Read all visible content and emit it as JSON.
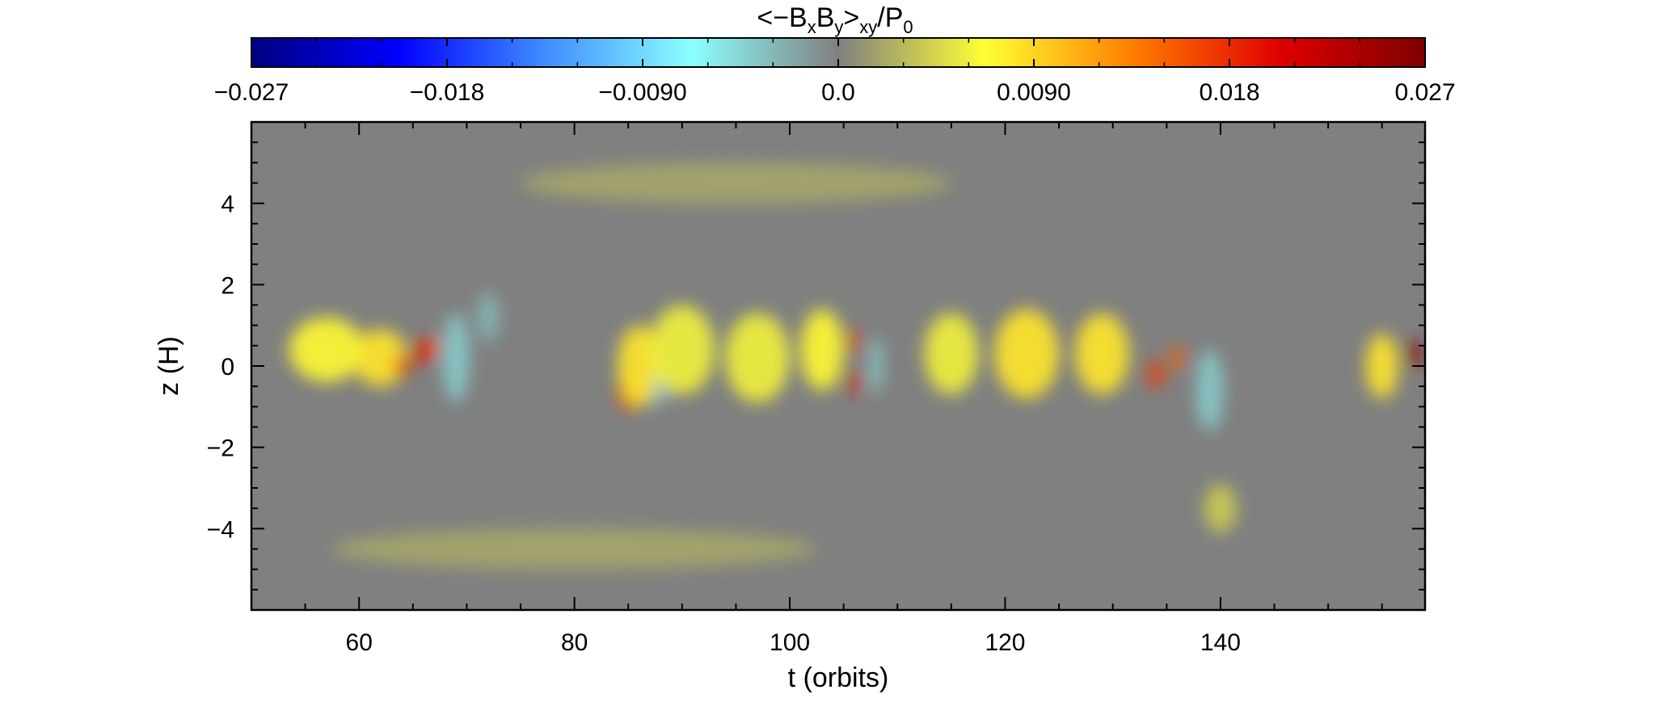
{
  "chart_data": {
    "type": "heatmap",
    "title": "",
    "colorbar": {
      "label_main": "<−B",
      "label_sub_x": "x",
      "label_mid": "B",
      "label_sub_y": "y",
      "label_close": ">",
      "label_sub_xy": "xy",
      "label_div": "/P",
      "label_sub_0": "0",
      "range": [
        -0.027,
        0.027
      ],
      "ticks": [
        -0.027,
        -0.018,
        -0.009,
        0.0,
        0.009,
        0.018,
        0.027
      ],
      "tick_labels": [
        "−0.027",
        "−0.018",
        "−0.0090",
        "0.0",
        "0.0090",
        "0.018",
        "0.027"
      ],
      "colormap": [
        "#00007f",
        "#0000ff",
        "#3f8cff",
        "#8cffff",
        "#808080",
        "#ffff33",
        "#ff7f00",
        "#e00000",
        "#7f0000"
      ],
      "position": "top"
    },
    "xlabel": "t (orbits)",
    "ylabel": "z (H)",
    "xlim": [
      50,
      159
    ],
    "ylim": [
      -6,
      6
    ],
    "x_ticks": [
      60,
      80,
      100,
      120,
      140
    ],
    "x_tick_labels": [
      "60",
      "80",
      "100",
      "120",
      "140"
    ],
    "y_ticks": [
      -4,
      -2,
      0,
      2,
      4
    ],
    "y_tick_labels": [
      "−4",
      "−2",
      "0",
      "2",
      "4"
    ],
    "background_value": 0.0,
    "features": [
      {
        "t": 57,
        "z": 0.4,
        "dt": 7,
        "dz": 1.6,
        "value": 0.007
      },
      {
        "t": 62,
        "z": 0.2,
        "dt": 5,
        "dz": 1.4,
        "value": 0.008
      },
      {
        "t": 64,
        "z": 0.0,
        "dt": 1.4,
        "dz": 0.55,
        "value": 0.018
      },
      {
        "t": 66,
        "z": 0.35,
        "dt": 1.8,
        "dz": 0.6,
        "value": 0.019
      },
      {
        "t": 67,
        "z": 0.5,
        "dt": 1.1,
        "dz": 0.4,
        "value": 0.016
      },
      {
        "t": 69,
        "z": 0.2,
        "dt": 2.5,
        "dz": 2.2,
        "value": -0.004
      },
      {
        "t": 72,
        "z": 1.2,
        "dt": 2.0,
        "dz": 1.2,
        "value": -0.003
      },
      {
        "t": 85,
        "z": -0.6,
        "dt": 1.8,
        "dz": 1.0,
        "value": 0.017
      },
      {
        "t": 86,
        "z": 0.0,
        "dt": 4,
        "dz": 2.0,
        "value": 0.008
      },
      {
        "t": 88,
        "z": -0.4,
        "dt": 1.2,
        "dz": 1.2,
        "value": -0.004
      },
      {
        "t": 90,
        "z": 0.4,
        "dt": 6,
        "dz": 2.2,
        "value": 0.006
      },
      {
        "t": 97,
        "z": 0.2,
        "dt": 6,
        "dz": 2.2,
        "value": 0.006
      },
      {
        "t": 103,
        "z": 0.4,
        "dt": 4,
        "dz": 2.0,
        "value": 0.007
      },
      {
        "t": 106,
        "z": 0.6,
        "dt": 1.0,
        "dz": 0.6,
        "value": 0.017
      },
      {
        "t": 106,
        "z": -0.4,
        "dt": 1.0,
        "dz": 0.6,
        "value": 0.02
      },
      {
        "t": 108,
        "z": 0.0,
        "dt": 1.2,
        "dz": 1.4,
        "value": -0.004
      },
      {
        "t": 115,
        "z": 0.3,
        "dt": 5,
        "dz": 2.0,
        "value": 0.006
      },
      {
        "t": 122,
        "z": 0.3,
        "dt": 6,
        "dz": 2.2,
        "value": 0.008
      },
      {
        "t": 129,
        "z": 0.3,
        "dt": 5,
        "dz": 2.0,
        "value": 0.008
      },
      {
        "t": 134,
        "z": -0.2,
        "dt": 1.5,
        "dz": 0.7,
        "value": 0.017
      },
      {
        "t": 136,
        "z": 0.2,
        "dt": 1.2,
        "dz": 0.6,
        "value": 0.015
      },
      {
        "t": 139,
        "z": -0.6,
        "dt": 2.5,
        "dz": 2.0,
        "value": -0.004
      },
      {
        "t": 155,
        "z": 0.0,
        "dt": 3,
        "dz": 1.6,
        "value": 0.008
      },
      {
        "t": 158,
        "z": 0.3,
        "dt": 1.3,
        "dz": 0.7,
        "value": 0.026
      },
      {
        "t": 95,
        "z": 4.5,
        "dt": 40,
        "dz": 1.0,
        "value": 0.002
      },
      {
        "t": 80,
        "z": -4.5,
        "dt": 45,
        "dz": 1.0,
        "value": 0.002
      },
      {
        "t": 140,
        "z": -3.5,
        "dt": 3,
        "dz": 1.2,
        "value": 0.004
      }
    ]
  }
}
